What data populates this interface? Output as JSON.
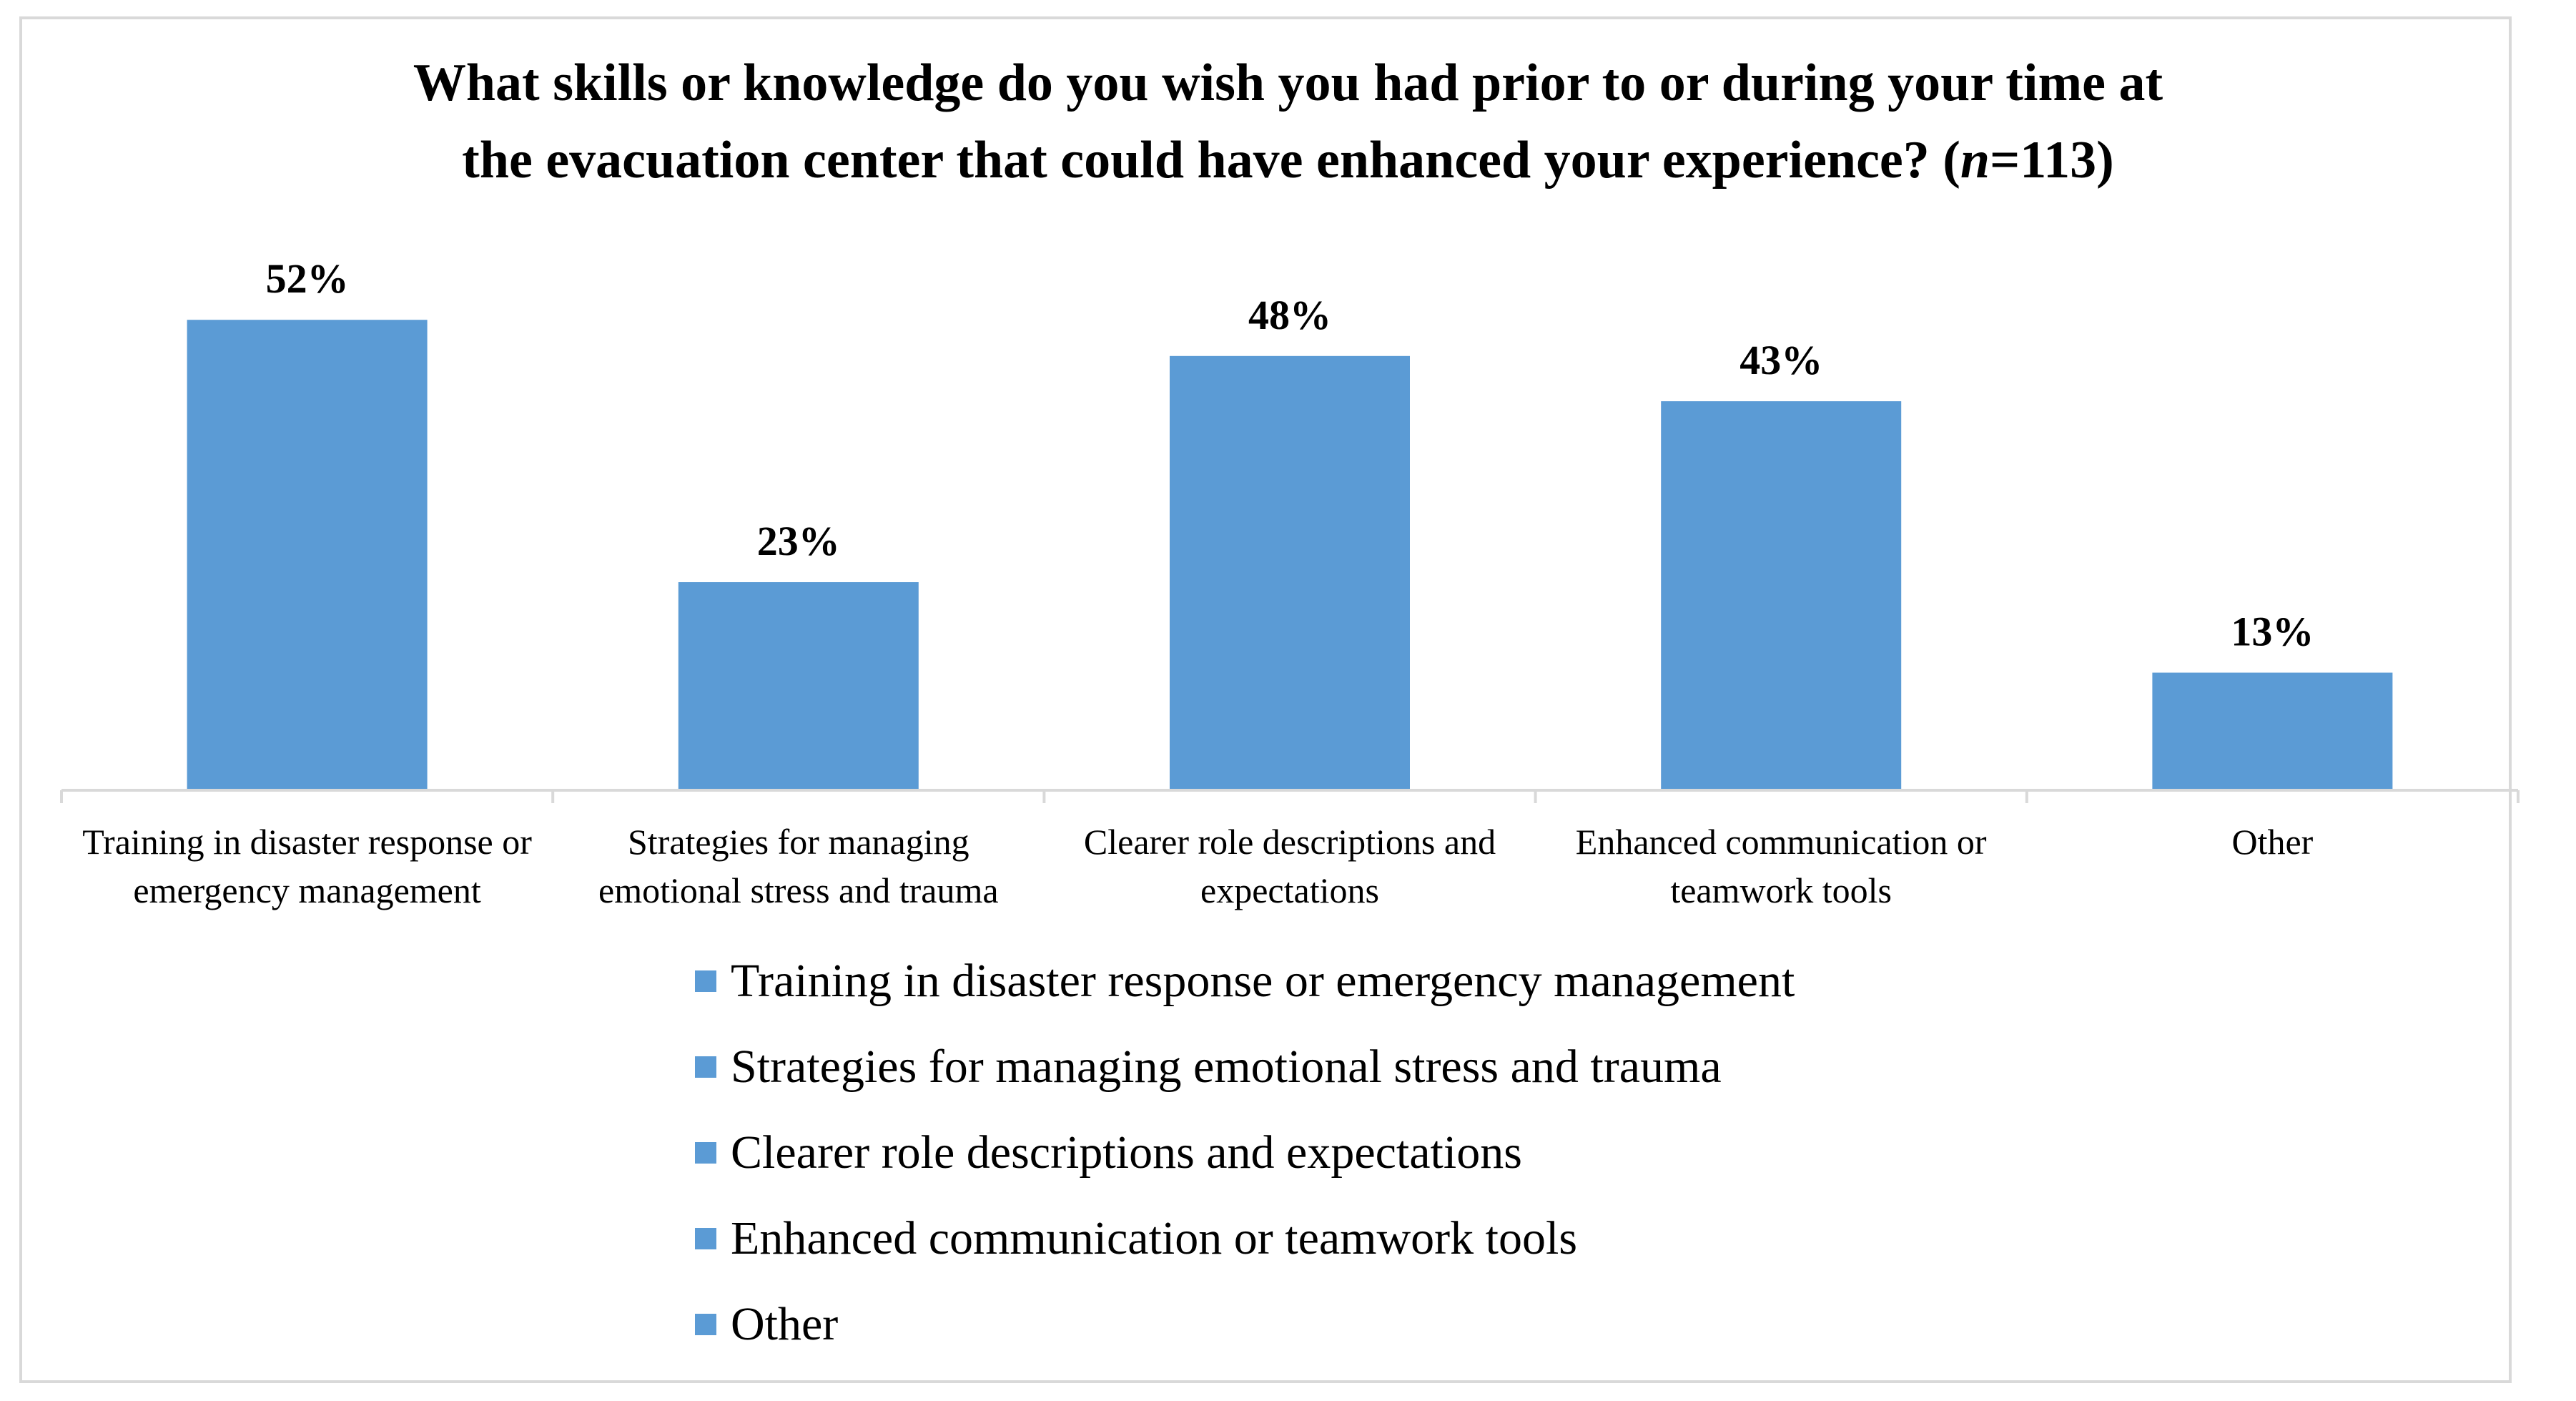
{
  "chart_data": {
    "type": "bar",
    "title_main": "What skills or knowledge do you wish you had prior to or during your time at",
    "title_second": "the evacuation center that could have enhanced your experience? (",
    "title_n": "n",
    "title_n_value": "=113)",
    "categories": [
      "Training in disaster response or emergency management",
      "Strategies for managing emotional stress and trauma",
      "Clearer role descriptions and expectations",
      "Enhanced communication or teamwork tools",
      "Other"
    ],
    "values": [
      52,
      23,
      48,
      43,
      13
    ],
    "value_labels": [
      "52%",
      "23%",
      "48%",
      "43%",
      "13%"
    ],
    "unit": "%",
    "ylim": [
      0,
      60
    ],
    "grid": false,
    "legend": {
      "placement": "bottom",
      "entries": [
        "Training in disaster response or emergency management",
        "Strategies for managing emotional stress and trauma",
        "Clearer role descriptions and expectations",
        "Enhanced communication or teamwork tools",
        "Other"
      ]
    },
    "colors": {
      "bar": "#5b9bd5",
      "axis": "#d9d9d9",
      "border": "#d9d9d9"
    }
  }
}
